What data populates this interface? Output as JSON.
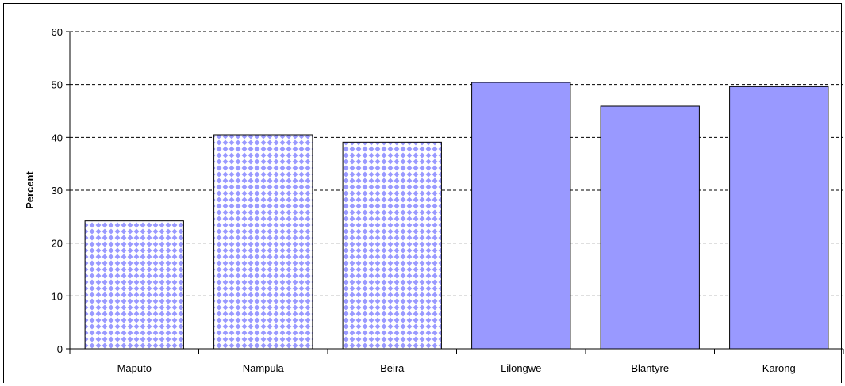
{
  "chart_data": {
    "type": "bar",
    "title": "",
    "xlabel": "",
    "ylabel": "Percent",
    "categories": [
      "Maputo",
      "Nampula",
      "Beira",
      "Lilongwe",
      "Blantyre",
      "Karong"
    ],
    "values": [
      24.2,
      40.5,
      39.1,
      50.4,
      45.9,
      49.6
    ],
    "ylim": [
      0,
      60
    ],
    "yticks": [
      "0",
      "10",
      "20",
      "30",
      "40",
      "50",
      "60"
    ],
    "grid": "horizontal-dashed",
    "legend": "none",
    "colors": {
      "accent": "#9999ff",
      "pattern_fill": "#9999ff",
      "pattern_background": "#ffffff",
      "gridline": "#000000",
      "bar_stroke": "#000000"
    },
    "fill_styles": [
      "pattern",
      "pattern",
      "pattern",
      "solid",
      "solid",
      "solid"
    ]
  }
}
